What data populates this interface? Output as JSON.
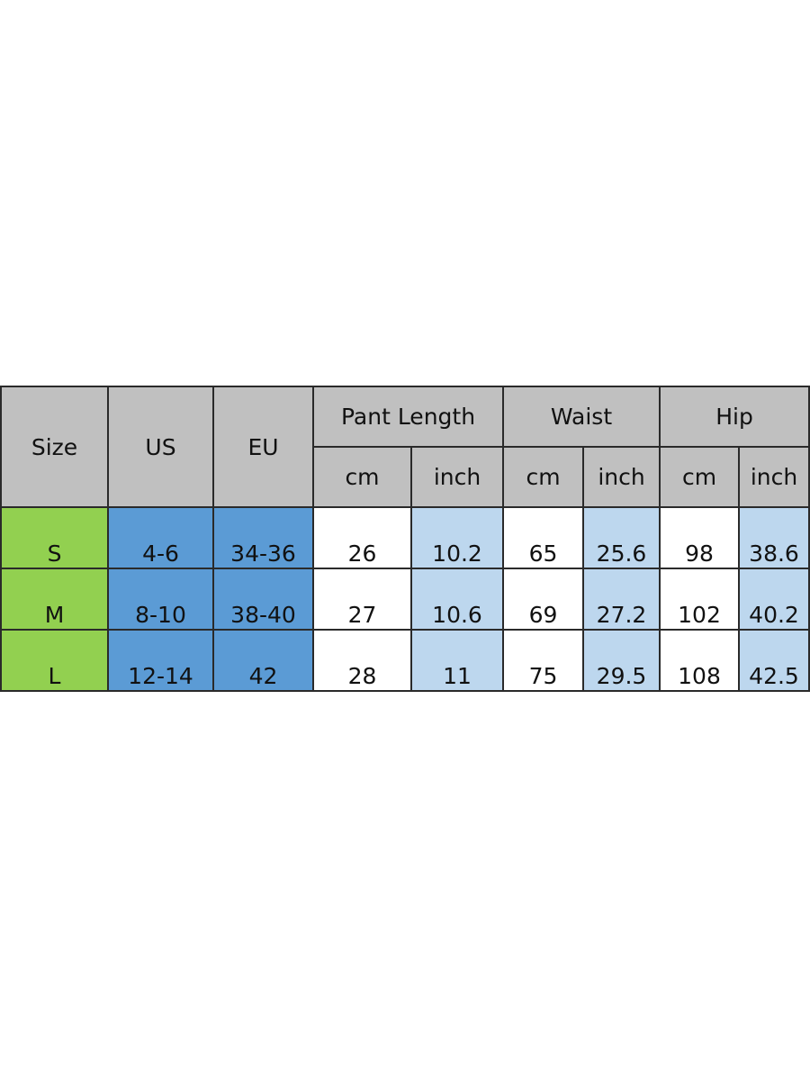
{
  "colors": {
    "header": "#c0c0c0",
    "size": "#92d050",
    "us_eu": "#5b9bd5",
    "inch": "#bdd7ee"
  },
  "header": {
    "size": "Size",
    "us": "US",
    "eu": "EU",
    "groups": [
      "Pant Length",
      "Waist",
      "Hip"
    ],
    "units": [
      "cm",
      "inch",
      "cm",
      "inch",
      "cm",
      "inch"
    ]
  },
  "rows": [
    {
      "size": "S",
      "us": "4-6",
      "eu": "34-36",
      "values": [
        "26",
        "10.2",
        "65",
        "25.6",
        "98",
        "38.6"
      ]
    },
    {
      "size": "M",
      "us": "8-10",
      "eu": "38-40",
      "values": [
        "27",
        "10.6",
        "69",
        "27.2",
        "102",
        "40.2"
      ]
    },
    {
      "size": "L",
      "us": "12-14",
      "eu": "42",
      "values": [
        "28",
        "11",
        "75",
        "29.5",
        "108",
        "42.5"
      ]
    }
  ]
}
